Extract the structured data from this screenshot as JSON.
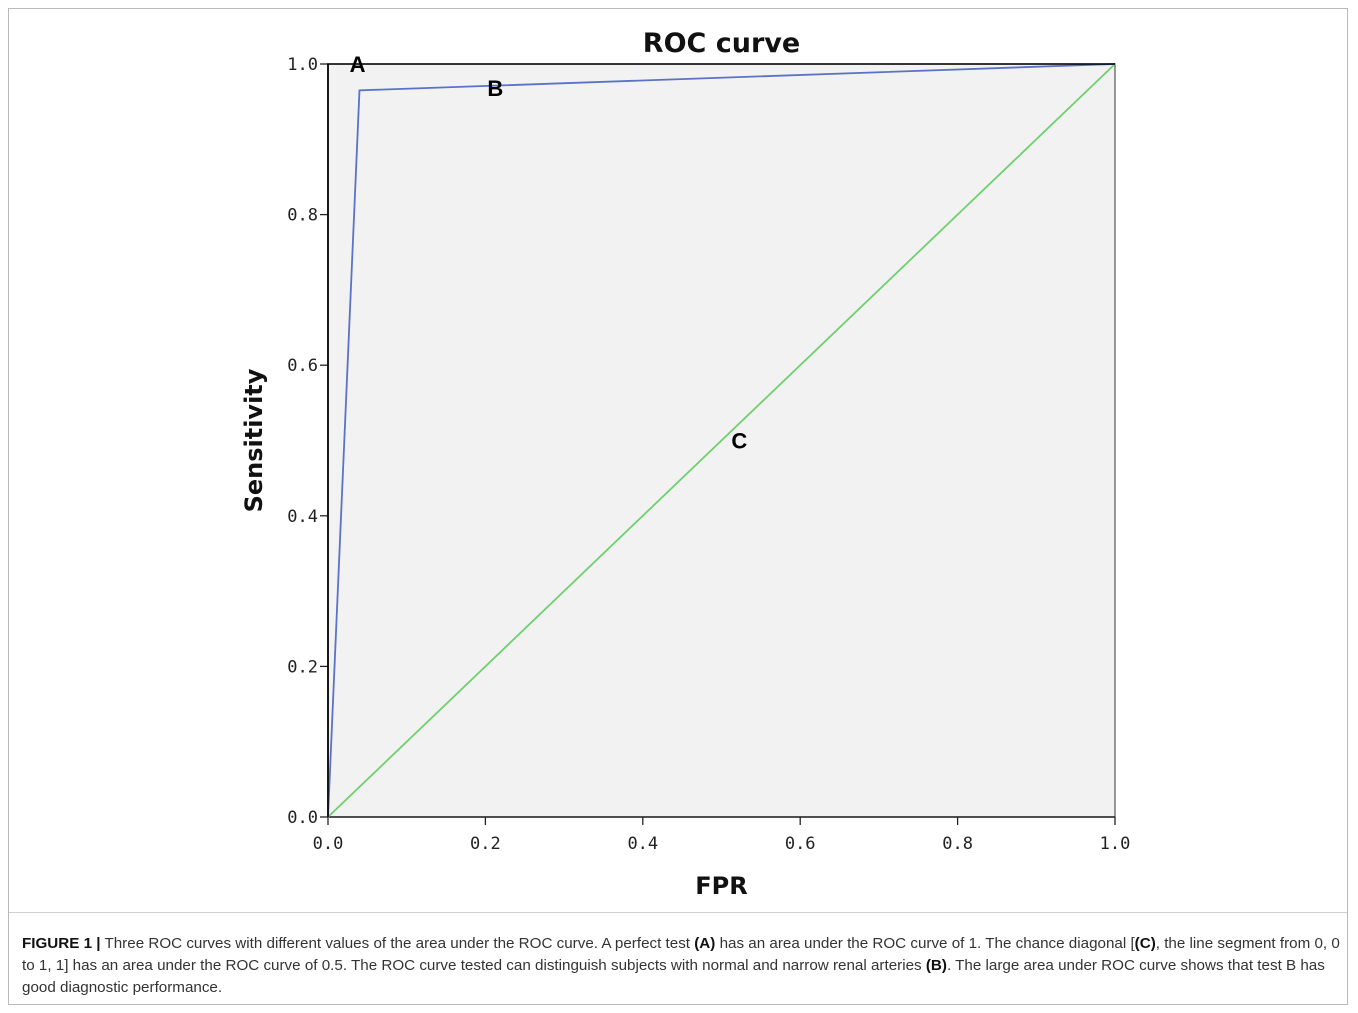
{
  "chart_data": {
    "type": "line",
    "title": "ROC curve",
    "xlabel": "FPR",
    "ylabel": "Sensitivity",
    "xlim": [
      0,
      1
    ],
    "ylim": [
      0,
      1
    ],
    "x_ticks": [
      "0.0",
      "0.2",
      "0.4",
      "0.6",
      "0.8",
      "1.0"
    ],
    "y_ticks": [
      "0.0",
      "0.2",
      "0.4",
      "0.6",
      "0.8",
      "1.0"
    ],
    "grid": false,
    "background": "#f2f2f2",
    "series": [
      {
        "name": "A",
        "color": "#000000",
        "x": [
          0,
          0,
          1
        ],
        "y": [
          0,
          1,
          1
        ]
      },
      {
        "name": "B",
        "color": "#5b72c8",
        "x": [
          0,
          0.04,
          1
        ],
        "y": [
          0,
          0.965,
          1
        ]
      },
      {
        "name": "C",
        "color": "#6fd06f",
        "x": [
          0,
          1
        ],
        "y": [
          0,
          1
        ]
      }
    ],
    "annotations": [
      {
        "text": "A",
        "x": 0.025,
        "y": 1.0
      },
      {
        "text": "B",
        "x": 0.2,
        "y": 0.968
      },
      {
        "text": "C",
        "x": 0.51,
        "y": 0.5
      }
    ]
  },
  "caption": {
    "label": "FIGURE 1 |",
    "s1": " Three ROC curves with different values of the area under the ROC curve. A perfect test ",
    "b1": "(A)",
    "s2": " has an area under the ROC curve of 1. The chance diagonal [",
    "b2": "(C)",
    "s3": ", the line segment from 0, 0 to 1, 1] has an area under the ROC curve of 0.5. The ROC curve tested can distinguish subjects with normal and narrow renal arteries ",
    "b3": "(B)",
    "s4": ". The large area under ROC curve shows that test B has good diagnostic performance."
  }
}
